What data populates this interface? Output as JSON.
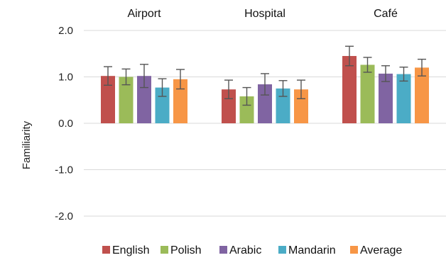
{
  "chart_data": {
    "type": "bar",
    "title": "",
    "xlabel": "",
    "ylabel": "Familiarity",
    "categories": [
      "Airport",
      "Hospital",
      "Café"
    ],
    "ylim": [
      -2.0,
      2.0
    ],
    "yticks": [
      "2.0",
      "1.0",
      "0.0",
      "-1.0",
      "-2.0"
    ],
    "ytick_values": [
      2.0,
      1.0,
      0.0,
      -1.0,
      -2.0
    ],
    "grid": true,
    "legend_position": "bottom",
    "series": [
      {
        "name": "English",
        "color": "#c0504d",
        "values": [
          1.02,
          0.73,
          1.45
        ],
        "errors": [
          0.2,
          0.2,
          0.21
        ]
      },
      {
        "name": "Polish",
        "color": "#9bbb59",
        "values": [
          1.0,
          0.58,
          1.26
        ],
        "errors": [
          0.17,
          0.19,
          0.16
        ]
      },
      {
        "name": "Arabic",
        "color": "#8064a2",
        "values": [
          1.02,
          0.84,
          1.07
        ],
        "errors": [
          0.25,
          0.23,
          0.17
        ]
      },
      {
        "name": "Mandarin",
        "color": "#4bacc6",
        "values": [
          0.77,
          0.75,
          1.06
        ],
        "errors": [
          0.19,
          0.17,
          0.15
        ]
      },
      {
        "name": "Average",
        "color": "#f79646",
        "values": [
          0.95,
          0.73,
          1.2
        ],
        "errors": [
          0.21,
          0.2,
          0.18
        ]
      }
    ]
  }
}
